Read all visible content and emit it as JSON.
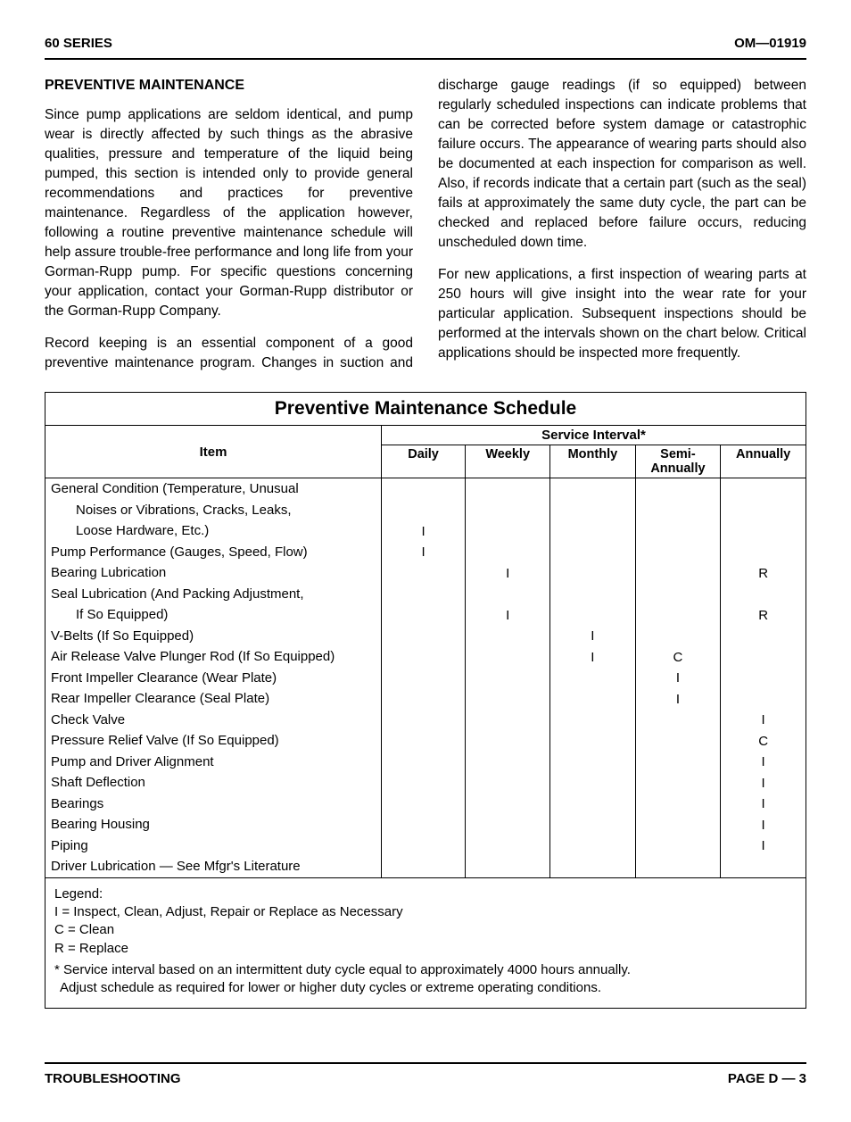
{
  "header": {
    "left": "60 SERIES",
    "right": "OM—01919"
  },
  "section_title": "PREVENTIVE MAINTENANCE",
  "paragraphs": [
    "Since pump applications are seldom identical, and pump wear is directly affected by such things as the abrasive qualities, pressure and temperature of the liquid being pumped, this section is intended only to provide general recommendations and practices for preventive maintenance. Regardless of the application however, following a routine preventive maintenance schedule will help assure trouble-free performance and long life from your Gorman-Rupp pump. For specific questions concerning your application, contact your Gorman-Rupp distributor or the Gorman-Rupp Company.",
    "Record keeping is an essential component of a good preventive maintenance program. Changes in suction and discharge gauge readings (if so equipped) between regularly scheduled inspections can indicate problems that can be corrected before system damage or catastrophic failure occurs. The appearance of wearing parts should also be documented at each inspection for comparison as well. Also, if records indicate that a certain part (such as the seal) fails at approximately the same duty cycle, the part can be checked and replaced before failure occurs, reducing unscheduled down time.",
    "For new applications, a first inspection of wearing parts at 250 hours will give insight into the wear rate for your particular application. Subsequent inspections should be performed at the intervals shown on the chart below. Critical applications should be inspected more frequently."
  ],
  "table": {
    "title": "Preventive Maintenance Schedule",
    "item_header": "Item",
    "service_header": "Service Interval*",
    "columns": [
      "Daily",
      "Weekly",
      "Monthly",
      "Semi-\nAnnually",
      "Annually"
    ],
    "rows": [
      {
        "item": "General Condition (Temperature, Unusual",
        "marks": [
          "",
          "",
          "",
          "",
          ""
        ]
      },
      {
        "item": "Noises or Vibrations, Cracks, Leaks,",
        "indent": true,
        "marks": [
          "",
          "",
          "",
          "",
          ""
        ]
      },
      {
        "item": "Loose Hardware, Etc.)",
        "indent": true,
        "marks": [
          "I",
          "",
          "",
          "",
          ""
        ]
      },
      {
        "item": "Pump Performance (Gauges, Speed, Flow)",
        "marks": [
          "I",
          "",
          "",
          "",
          ""
        ]
      },
      {
        "item": "Bearing Lubrication",
        "marks": [
          "",
          "I",
          "",
          "",
          "R"
        ]
      },
      {
        "item": "Seal Lubrication (And Packing Adjustment,",
        "marks": [
          "",
          "",
          "",
          "",
          ""
        ]
      },
      {
        "item": "If So Equipped)",
        "indent": true,
        "marks": [
          "",
          "I",
          "",
          "",
          "R"
        ]
      },
      {
        "item": "V-Belts (If So Equipped)",
        "marks": [
          "",
          "",
          "I",
          "",
          ""
        ]
      },
      {
        "item": "Air Release Valve Plunger Rod (If So Equipped)",
        "marks": [
          "",
          "",
          "I",
          "C",
          ""
        ]
      },
      {
        "item": "Front Impeller Clearance (Wear Plate)",
        "marks": [
          "",
          "",
          "",
          "I",
          ""
        ]
      },
      {
        "item": "Rear Impeller Clearance (Seal Plate)",
        "marks": [
          "",
          "",
          "",
          "I",
          ""
        ]
      },
      {
        "item": "Check Valve",
        "marks": [
          "",
          "",
          "",
          "",
          "I"
        ]
      },
      {
        "item": "Pressure Relief Valve (If So Equipped)",
        "marks": [
          "",
          "",
          "",
          "",
          "C"
        ]
      },
      {
        "item": "Pump and Driver Alignment",
        "marks": [
          "",
          "",
          "",
          "",
          "I"
        ]
      },
      {
        "item": "Shaft Deflection",
        "marks": [
          "",
          "",
          "",
          "",
          "I"
        ]
      },
      {
        "item": "Bearings",
        "marks": [
          "",
          "",
          "",
          "",
          "I"
        ]
      },
      {
        "item": "Bearing Housing",
        "marks": [
          "",
          "",
          "",
          "",
          "I"
        ]
      },
      {
        "item": "Piping",
        "marks": [
          "",
          "",
          "",
          "",
          "I"
        ]
      },
      {
        "item": "Driver Lubrication — See Mfgr's Literature",
        "marks": [
          "",
          "",
          "",
          "",
          ""
        ]
      }
    ]
  },
  "legend": {
    "title": "Legend:",
    "lines": [
      "I  =  Inspect, Clean, Adjust, Repair or Replace as Necessary",
      "C =  Clean",
      "R =  Replace"
    ],
    "note1": "*  Service interval based on an intermittent duty cycle equal to approximately 4000 hours annually.",
    "note2": "Adjust schedule as required for lower or higher duty cycles or extreme operating conditions."
  },
  "footer": {
    "left": "TROUBLESHOOTING",
    "right": "PAGE D — 3"
  }
}
